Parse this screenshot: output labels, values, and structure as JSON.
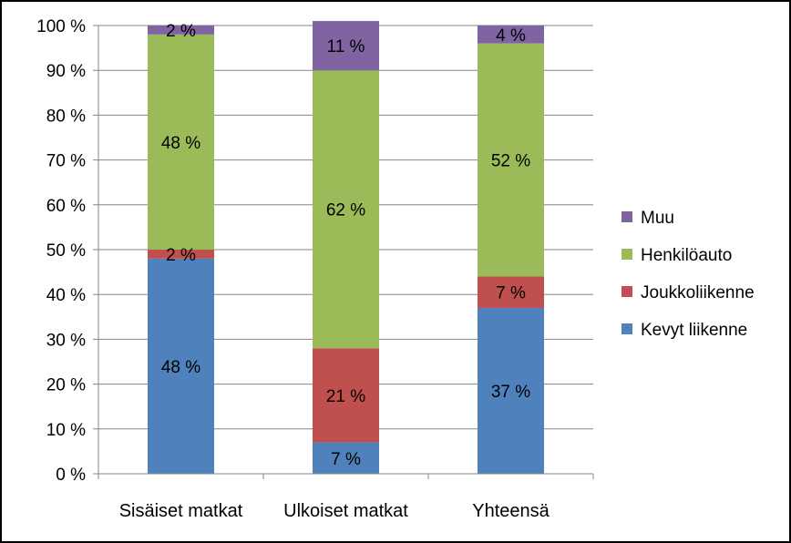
{
  "chart_data": {
    "type": "bar",
    "stacked": true,
    "percent_stacked": true,
    "categories": [
      "Sisäiset matkat",
      "Ulkoiset matkat",
      "Yhteensä"
    ],
    "series": [
      {
        "name": "Kevyt liikenne",
        "color": "#4F81BD",
        "values": [
          48,
          7,
          37
        ],
        "labels": [
          "48 %",
          "7 %",
          "37 %"
        ]
      },
      {
        "name": "Joukkoliikenne",
        "color": "#C0504D",
        "values": [
          2,
          21,
          7
        ],
        "labels": [
          "2 %",
          "21 %",
          "7 %"
        ]
      },
      {
        "name": "Henkilöauto",
        "color": "#9BBB59",
        "values": [
          48,
          62,
          52
        ],
        "labels": [
          "48 %",
          "62 %",
          "52 %"
        ]
      },
      {
        "name": "Muu",
        "color": "#8064A2",
        "values": [
          2,
          11,
          4
        ],
        "labels": [
          "2 %",
          "11 %",
          "4 %"
        ]
      }
    ],
    "ylim": [
      0,
      100
    ],
    "yticks": [
      "0 %",
      "10 %",
      "20 %",
      "30 %",
      "40 %",
      "50 %",
      "60 %",
      "70 %",
      "80 %",
      "90 %",
      "100 %"
    ],
    "grid": true,
    "legend_position": "right",
    "legend_order": [
      "Muu",
      "Henkilöauto",
      "Joukkoliikenne",
      "Kevyt liikenne"
    ],
    "xlabel": "",
    "ylabel": "",
    "title": ""
  }
}
